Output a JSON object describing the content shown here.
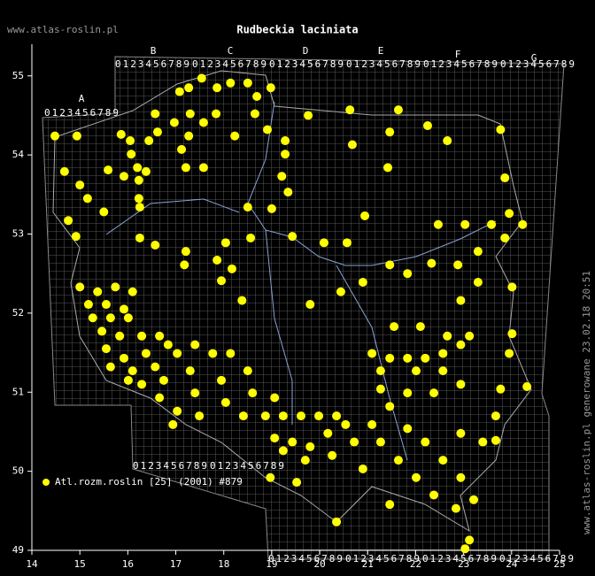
{
  "chart_data": {
    "type": "scatter",
    "title": "Rudbeckia laciniata",
    "site": "www.atlas-roslin.pl",
    "side_note": "www.atlas-roslin.pl generowane 23.02.18 20:51",
    "grid_letters": [
      "A",
      "B",
      "C",
      "D",
      "E",
      "F",
      "G"
    ],
    "grid_digits": "0123456789",
    "xlim": [
      14,
      25
    ],
    "ylim": [
      49,
      55.4
    ],
    "xticks": [
      14,
      15,
      16,
      17,
      18,
      19,
      20,
      21,
      22,
      23,
      24,
      25
    ],
    "yticks": [
      49,
      50,
      51,
      52,
      53,
      54,
      55
    ],
    "series": [
      {
        "name": "Atl.rozm.roslin [25] (2001) #879",
        "color": "#ffff00",
        "x": [
          14.48,
          14.94,
          14.68,
          15.0,
          15.16,
          14.76,
          14.92,
          15.5,
          15.59,
          15.86,
          16.05,
          16.07,
          15.92,
          16.2,
          16.23,
          16.23,
          16.25,
          16.44,
          16.38,
          16.57,
          16.62,
          16.97,
          17.08,
          17.27,
          17.3,
          17.27,
          17.12,
          17.21,
          17.58,
          17.58,
          17.54,
          17.86,
          18.14,
          18.5,
          18.69,
          18.65,
          18.23,
          17.84,
          18.98,
          18.91,
          19.28,
          19.28,
          19.21,
          19.34,
          19.76,
          20.63,
          20.68,
          21.42,
          21.46,
          21.64,
          22.25,
          22.66,
          23.77,
          23.86,
          20.94,
          20.57,
          20.9,
          20.44,
          19.8,
          19.43,
          20.09,
          18.5,
          19.0,
          18.56,
          18.04,
          17.86,
          18.17,
          17.95,
          18.38,
          17.21,
          17.18,
          16.57,
          16.25,
          22.47,
          23.03,
          23.58,
          23.95,
          24.23,
          23.86,
          23.3,
          22.88,
          22.33,
          21.83,
          21.46,
          23.3,
          24.01,
          22.94,
          24.01,
          23.95,
          24.32,
          23.77,
          23.67,
          23.67,
          15.0,
          15.37,
          15.74,
          16.1,
          15.18,
          15.55,
          15.92,
          15.27,
          15.64,
          16.01,
          15.46,
          15.83,
          16.29,
          16.66,
          15.55,
          15.92,
          16.38,
          16.84,
          15.64,
          16.1,
          16.57,
          17.03,
          17.4,
          16.01,
          16.29,
          16.75,
          17.3,
          17.77,
          18.14,
          16.66,
          17.03,
          17.4,
          17.95,
          18.5,
          16.94,
          17.49,
          18.04,
          18.6,
          19.06,
          18.41,
          18.87,
          19.24,
          19.61,
          19.98,
          20.35,
          19.06,
          19.43,
          19.8,
          20.17,
          20.54,
          19.24,
          19.7,
          20.26,
          20.72,
          21.09,
          21.46,
          21.09,
          21.46,
          21.83,
          22.2,
          22.57,
          22.94,
          21.27,
          22.01,
          22.57,
          21.27,
          21.83,
          22.38,
          22.94,
          21.55,
          22.1,
          22.66,
          23.12,
          21.83,
          22.2,
          22.57,
          22.94,
          23.21,
          22.84,
          22.38,
          22.01,
          21.64,
          21.27,
          21.46,
          20.9,
          20.35,
          19.52,
          18.97,
          22.94,
          23.4,
          23.12,
          23.03
        ],
        "values": [
          54.24,
          54.24,
          53.79,
          53.62,
          53.45,
          53.17,
          52.97,
          53.28,
          53.81,
          54.26,
          54.18,
          54.01,
          53.73,
          53.84,
          53.68,
          53.45,
          53.34,
          54.18,
          53.79,
          54.52,
          54.29,
          54.41,
          54.8,
          54.85,
          54.52,
          54.24,
          54.07,
          53.84,
          53.84,
          54.41,
          54.97,
          54.85,
          54.91,
          54.91,
          54.74,
          54.52,
          54.24,
          54.52,
          54.85,
          54.32,
          54.18,
          54.01,
          53.73,
          53.53,
          54.5,
          54.57,
          54.13,
          53.84,
          54.29,
          54.57,
          54.37,
          54.18,
          54.32,
          53.71,
          53.23,
          52.89,
          52.39,
          52.27,
          52.11,
          52.97,
          52.89,
          53.34,
          53.32,
          52.95,
          52.89,
          52.67,
          52.56,
          52.41,
          52.16,
          52.78,
          52.61,
          52.86,
          52.95,
          53.12,
          53.12,
          53.12,
          53.26,
          53.12,
          52.95,
          52.78,
          52.61,
          52.63,
          52.5,
          52.61,
          52.39,
          52.33,
          52.16,
          51.74,
          51.49,
          51.07,
          51.04,
          50.7,
          50.39,
          52.33,
          52.27,
          52.33,
          52.27,
          52.11,
          52.11,
          52.05,
          51.94,
          51.94,
          51.94,
          51.77,
          51.71,
          51.71,
          51.71,
          51.55,
          51.43,
          51.49,
          51.6,
          51.32,
          51.27,
          51.32,
          51.49,
          51.6,
          51.15,
          51.1,
          51.15,
          51.27,
          51.49,
          51.49,
          50.93,
          50.76,
          50.99,
          51.15,
          51.27,
          50.59,
          50.7,
          50.87,
          50.99,
          50.93,
          50.7,
          50.7,
          50.7,
          50.7,
          50.7,
          50.7,
          50.42,
          50.37,
          50.31,
          50.48,
          50.59,
          50.26,
          50.14,
          50.2,
          50.37,
          50.59,
          50.82,
          51.49,
          51.43,
          51.43,
          51.43,
          51.49,
          51.6,
          51.27,
          51.27,
          51.27,
          51.04,
          50.99,
          50.99,
          51.1,
          51.83,
          51.83,
          51.71,
          51.71,
          50.54,
          50.37,
          50.14,
          49.92,
          49.64,
          49.53,
          49.7,
          49.92,
          50.14,
          50.37,
          49.58,
          50.03,
          49.36,
          49.86,
          49.92,
          50.48,
          50.37,
          49.13,
          49.02
        ]
      }
    ]
  }
}
